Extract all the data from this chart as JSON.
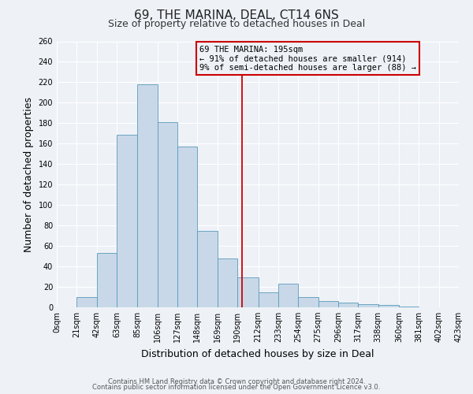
{
  "title": "69, THE MARINA, DEAL, CT14 6NS",
  "subtitle": "Size of property relative to detached houses in Deal",
  "xlabel": "Distribution of detached houses by size in Deal",
  "ylabel": "Number of detached properties",
  "bin_labels": [
    "0sqm",
    "21sqm",
    "42sqm",
    "63sqm",
    "85sqm",
    "106sqm",
    "127sqm",
    "148sqm",
    "169sqm",
    "190sqm",
    "212sqm",
    "233sqm",
    "254sqm",
    "275sqm",
    "296sqm",
    "317sqm",
    "338sqm",
    "360sqm",
    "381sqm",
    "402sqm",
    "423sqm"
  ],
  "bin_edges": [
    0,
    21,
    42,
    63,
    85,
    106,
    127,
    148,
    169,
    190,
    212,
    233,
    254,
    275,
    296,
    317,
    338,
    360,
    381,
    402,
    423
  ],
  "bar_heights": [
    0,
    10,
    53,
    169,
    218,
    181,
    157,
    75,
    48,
    29,
    15,
    23,
    10,
    6,
    5,
    3,
    2,
    1,
    0,
    0
  ],
  "bar_color": "#c8d8e8",
  "bar_edgecolor": "#5a9aba",
  "reference_line_x": 195,
  "reference_line_color": "#cc0000",
  "annotation_line1": "69 THE MARINA: 195sqm",
  "annotation_line2": "← 91% of detached houses are smaller (914)",
  "annotation_line3": "9% of semi-detached houses are larger (88) →",
  "box_edgecolor": "#cc0000",
  "ylim": [
    0,
    260
  ],
  "yticks": [
    0,
    20,
    40,
    60,
    80,
    100,
    120,
    140,
    160,
    180,
    200,
    220,
    240,
    260
  ],
  "footer_line1": "Contains HM Land Registry data © Crown copyright and database right 2024.",
  "footer_line2": "Contains public sector information licensed under the Open Government Licence v3.0.",
  "background_color": "#eef2f7",
  "grid_color": "#ffffff",
  "title_fontsize": 11,
  "subtitle_fontsize": 9,
  "label_fontsize": 9,
  "tick_fontsize": 7,
  "footer_fontsize": 6,
  "annot_fontsize": 7.5
}
